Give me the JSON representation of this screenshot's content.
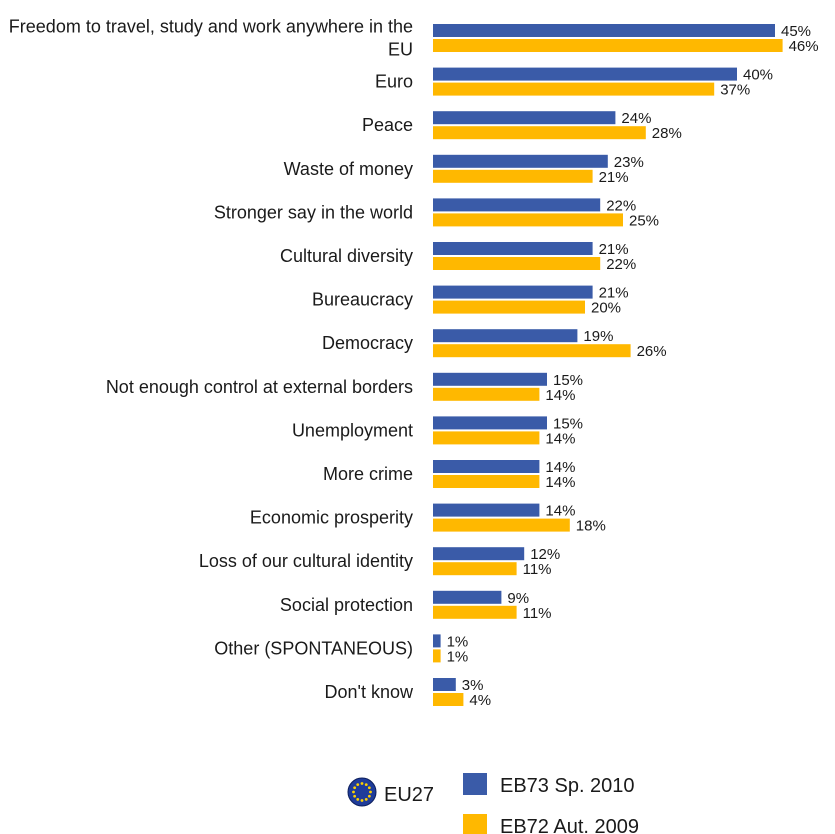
{
  "chart_data": {
    "type": "bar",
    "orientation": "horizontal",
    "categories": [
      [
        "Freedom to travel, study and work anywhere in the",
        "EU"
      ],
      [
        "Euro"
      ],
      [
        "Peace"
      ],
      [
        "Waste of money"
      ],
      [
        "Stronger say in the world"
      ],
      [
        "Cultural diversity"
      ],
      [
        "Bureaucracy"
      ],
      [
        "Democracy"
      ],
      [
        "Not enough control at external borders"
      ],
      [
        "Unemployment"
      ],
      [
        "More crime"
      ],
      [
        "Economic prosperity"
      ],
      [
        "Loss of our cultural identity"
      ],
      [
        "Social protection"
      ],
      [
        "Other (SPONTANEOUS)"
      ],
      [
        "Don't know"
      ]
    ],
    "series": [
      {
        "name": "EB73 Sp. 2010",
        "color": "#3a5ba8",
        "values": [
          45,
          40,
          24,
          23,
          22,
          21,
          21,
          19,
          15,
          15,
          14,
          14,
          12,
          9,
          1,
          3
        ],
        "labels": [
          "45%",
          "40%",
          "24%",
          "23%",
          "22%",
          "21%",
          "21%",
          "19%",
          "15%",
          "15%",
          "14%",
          "14%",
          "12%",
          "9%",
          "1%",
          "3%"
        ]
      },
      {
        "name": "EB72 Aut. 2009",
        "color": "#ffb800",
        "values": [
          46,
          37,
          28,
          21,
          25,
          22,
          20,
          26,
          14,
          14,
          14,
          18,
          11,
          11,
          1,
          4
        ],
        "labels": [
          "46%",
          "37%",
          "28%",
          "21%",
          "25%",
          "22%",
          "20%",
          "26%",
          "14%",
          "14%",
          "14%",
          "18%",
          "11%",
          "11%",
          "1%",
          "4%"
        ]
      }
    ],
    "xlim": [
      0,
      46
    ],
    "grid": false,
    "legend": {
      "placement": "bottom",
      "group_label": "EU27",
      "group_icon": "eu-flag-icon"
    }
  }
}
